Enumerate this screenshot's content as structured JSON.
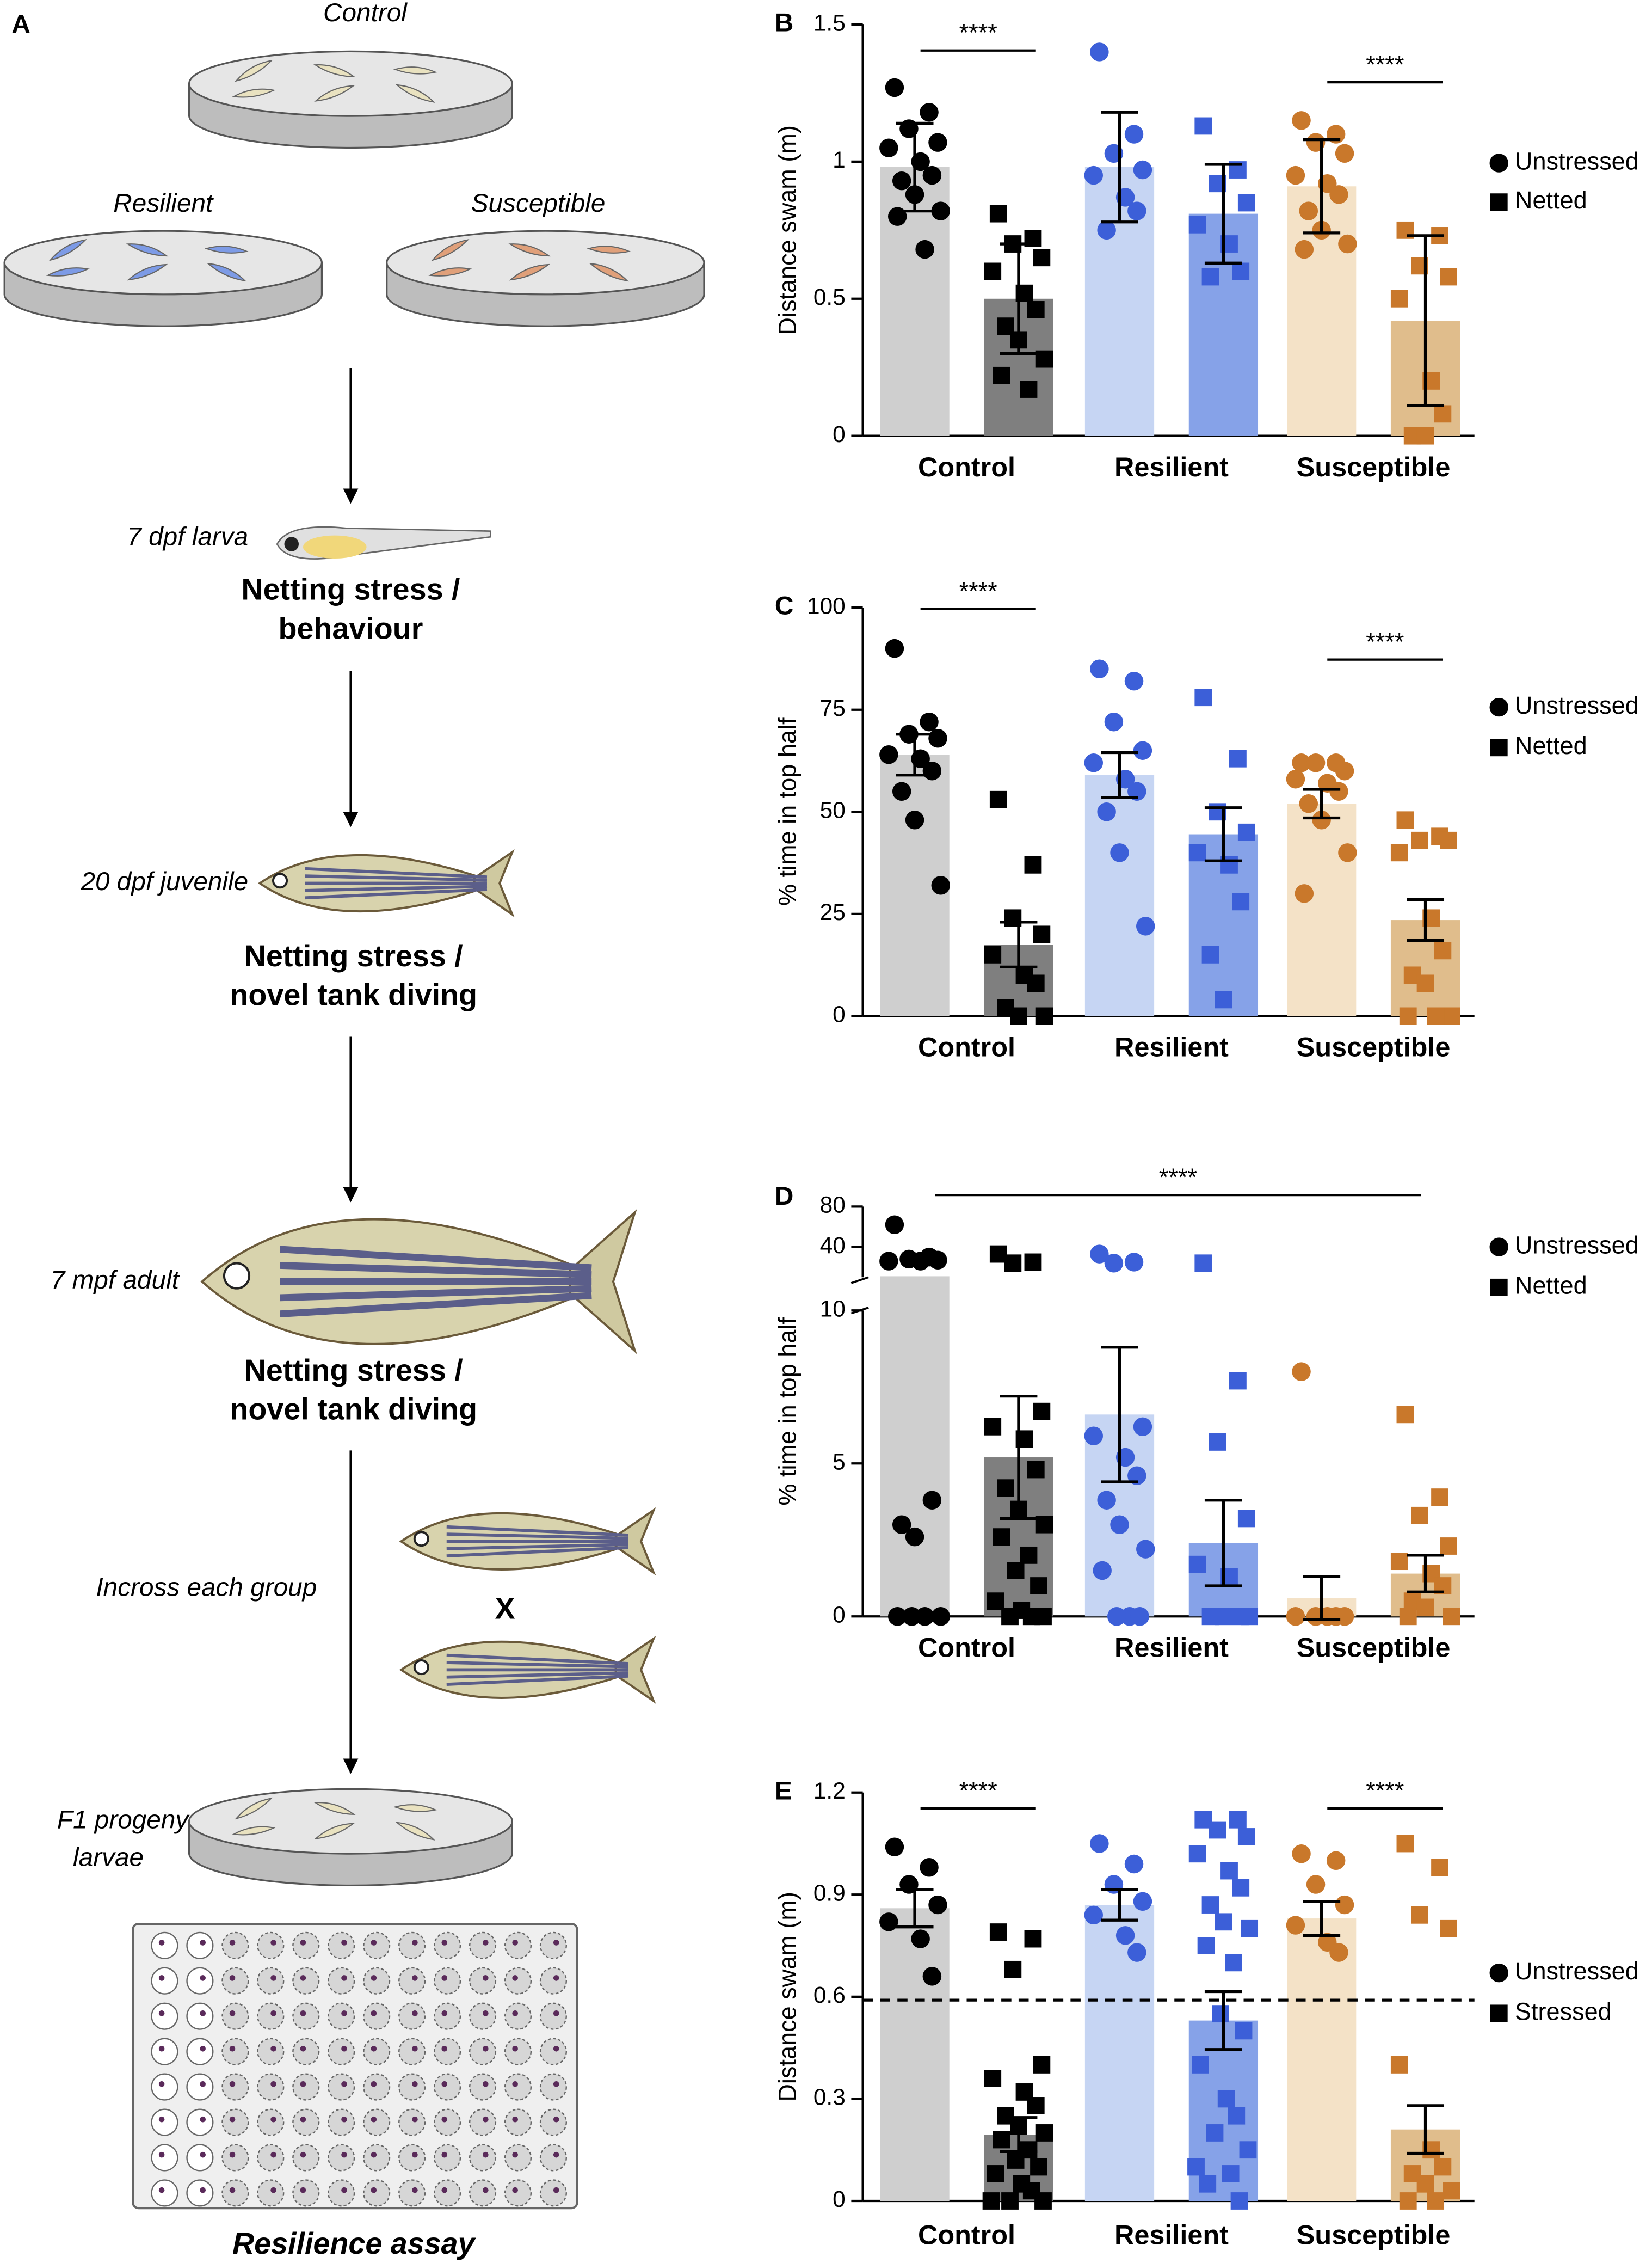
{
  "diagram": {
    "panel": "A",
    "dishes": [
      "Control",
      "Resilient",
      "Susceptible"
    ],
    "stages": [
      {
        "label": "7 dpf larva",
        "assay": [
          "Netting stress /",
          "behaviour"
        ]
      },
      {
        "label": "20 dpf juvenile",
        "assay": [
          "Netting stress /",
          "novel tank diving"
        ]
      },
      {
        "label": "7 mpf adult",
        "assay": [
          "Netting stress /",
          "novel tank diving"
        ]
      }
    ],
    "incross": "Incross each group",
    "cross": "X",
    "progeny": [
      "F1 progeny",
      "larvae"
    ],
    "assay": "Resilience assay"
  },
  "chart_data": [
    {
      "type": "bar",
      "panel": "B",
      "ylabel": "Distance swam (m)",
      "categories": [
        "Control",
        "Resilient",
        "Susceptible"
      ],
      "ylim": [
        0,
        1.5
      ],
      "yticks": [
        0,
        0.5,
        1,
        1.5
      ],
      "annotations": [
        "****",
        "****"
      ],
      "series": [
        {
          "name": "Unstressed",
          "marker": "circle",
          "colors": [
            "#cfcfcf",
            "#c6d5f3",
            "#f4e2c7"
          ],
          "point_colors": [
            "#000000",
            "#3c5fd8",
            "#c9782b"
          ],
          "values": [
            0.98,
            0.98,
            0.91
          ],
          "errors": [
            0.16,
            0.2,
            0.17
          ],
          "points": [
            [
              1.27,
              1.18,
              1.12,
              1.07,
              1.05,
              1.0,
              0.95,
              0.93,
              0.88,
              0.82,
              0.8,
              0.68
            ],
            [
              1.4,
              1.1,
              1.03,
              0.97,
              0.95,
              0.87,
              0.82,
              0.75
            ],
            [
              1.15,
              1.1,
              1.07,
              1.03,
              0.95,
              0.92,
              0.88,
              0.82,
              0.75,
              0.7,
              0.68
            ]
          ]
        },
        {
          "name": "Netted",
          "marker": "square",
          "colors": [
            "#7f7f7f",
            "#86a2e8",
            "#e0bd8c"
          ],
          "point_colors": [
            "#000000",
            "#3c5fd8",
            "#c9782b"
          ],
          "values": [
            0.5,
            0.81,
            0.42
          ],
          "errors": [
            0.2,
            0.18,
            0.31
          ],
          "points": [
            [
              0.81,
              0.72,
              0.7,
              0.65,
              0.6,
              0.52,
              0.46,
              0.4,
              0.35,
              0.28,
              0.22,
              0.17
            ],
            [
              1.13,
              0.97,
              0.92,
              0.85,
              0.77,
              0.7,
              0.6,
              0.58
            ],
            [
              0.75,
              0.73,
              0.62,
              0.58,
              0.5,
              0.2,
              0.08,
              0,
              0
            ]
          ]
        }
      ]
    },
    {
      "type": "bar",
      "panel": "C",
      "ylabel": "% time in top half",
      "categories": [
        "Control",
        "Resilient",
        "Susceptible"
      ],
      "ylim": [
        0,
        100
      ],
      "yticks": [
        0,
        25,
        50,
        75,
        100
      ],
      "annotations": [
        "****",
        "****"
      ],
      "series": [
        {
          "name": "Unstressed",
          "marker": "circle",
          "colors": [
            "#cfcfcf",
            "#c6d5f3",
            "#f4e2c7"
          ],
          "point_colors": [
            "#000000",
            "#3c5fd8",
            "#c9782b"
          ],
          "values": [
            64,
            59,
            52
          ],
          "errors": [
            5,
            5.5,
            3.5
          ],
          "points": [
            [
              90,
              72,
              69,
              68,
              64,
              63,
              60,
              55,
              48,
              32
            ],
            [
              85,
              82,
              72,
              65,
              62,
              58,
              55,
              50,
              40,
              22
            ],
            [
              62,
              62,
              62,
              60,
              58,
              57,
              55,
              52,
              48,
              40,
              30
            ]
          ]
        },
        {
          "name": "Netted",
          "marker": "square",
          "colors": [
            "#7f7f7f",
            "#86a2e8",
            "#e0bd8c"
          ],
          "point_colors": [
            "#000000",
            "#3c5fd8",
            "#c9782b"
          ],
          "values": [
            17.5,
            44.5,
            23.5
          ],
          "errors": [
            5.5,
            6.5,
            5
          ],
          "points": [
            [
              53,
              37,
              24,
              20,
              15,
              10,
              8,
              2,
              0,
              0
            ],
            [
              78,
              63,
              50,
              45,
              40,
              37,
              28,
              15,
              4
            ],
            [
              48,
              44,
              43,
              43,
              40,
              24,
              16,
              10,
              8,
              0,
              0,
              0
            ]
          ]
        }
      ]
    },
    {
      "type": "bar",
      "panel": "D",
      "ylabel": "% time in top half",
      "categories": [
        "Control",
        "Resilient",
        "Susceptible"
      ],
      "ylim": [
        0,
        10
      ],
      "yticks": [
        0,
        5,
        10
      ],
      "ylim_upper": [
        10,
        80
      ],
      "yticks_upper": [
        40,
        80
      ],
      "annotations": [
        "****"
      ],
      "series": [
        {
          "name": "Unstressed",
          "marker": "circle",
          "colors": [
            "#cfcfcf",
            "#c6d5f3",
            "#f4e2c7"
          ],
          "point_colors": [
            "#000000",
            "#3c5fd8",
            "#c9782b"
          ],
          "values": [
            11,
            6.6,
            0.6
          ],
          "errors": [
            null,
            2.2,
            0.7
          ],
          "points": [
            [
              62,
              30,
              28,
              27,
              26,
              26,
              3.8,
              3.0,
              2.6,
              0,
              0,
              0,
              0
            ],
            [
              33,
              25,
              24,
              6.2,
              5.9,
              5.2,
              4.6,
              3.8,
              3.0,
              2.2,
              1.5,
              0,
              0,
              0
            ],
            [
              8.0,
              0,
              0,
              0,
              0,
              0
            ]
          ]
        },
        {
          "name": "Netted",
          "marker": "square",
          "colors": [
            "#7f7f7f",
            "#86a2e8",
            "#e0bd8c"
          ],
          "point_colors": [
            "#000000",
            "#3c5fd8",
            "#c9782b"
          ],
          "values": [
            5.2,
            2.4,
            1.4
          ],
          "errors": [
            2,
            1.4,
            0.6
          ],
          "points": [
            [
              33,
              25,
              24,
              6.7,
              6.2,
              5.8,
              4.8,
              4.2,
              3.5,
              3.0,
              2.6,
              2.0,
              1.5,
              1.0,
              0.5,
              0.2,
              0,
              0,
              0
            ],
            [
              24,
              7.7,
              5.7,
              3.2,
              1.7,
              1.3,
              0,
              0,
              0,
              0
            ],
            [
              6.6,
              3.9,
              3.3,
              2.3,
              1.8,
              1.4,
              1.0,
              0.5,
              0.3,
              0,
              0
            ]
          ]
        }
      ]
    },
    {
      "type": "bar",
      "panel": "E",
      "ylabel": "Distance swam (m)",
      "categories": [
        "Control",
        "Resilient",
        "Susceptible"
      ],
      "ylim": [
        0,
        1.2
      ],
      "yticks": [
        0,
        0.3,
        0.6,
        0.9,
        1.2
      ],
      "threshold": 0.59,
      "annotations": [
        "****",
        "****"
      ],
      "series": [
        {
          "name": "Unstressed",
          "marker": "circle",
          "colors": [
            "#cfcfcf",
            "#c6d5f3",
            "#f4e2c7"
          ],
          "point_colors": [
            "#000000",
            "#3c5fd8",
            "#c9782b"
          ],
          "values": [
            0.86,
            0.87,
            0.83
          ],
          "errors": [
            0.055,
            0.045,
            0.05
          ],
          "points": [
            [
              1.04,
              0.98,
              0.93,
              0.87,
              0.82,
              0.77,
              0.66
            ],
            [
              1.05,
              0.99,
              0.93,
              0.88,
              0.84,
              0.78,
              0.73
            ],
            [
              1.02,
              1.0,
              0.93,
              0.87,
              0.81,
              0.76,
              0.73
            ]
          ]
        },
        {
          "name": "Stressed",
          "marker": "square",
          "colors": [
            "#7f7f7f",
            "#86a2e8",
            "#e0bd8c"
          ],
          "point_colors": [
            "#000000",
            "#3c5fd8",
            "#c9782b"
          ],
          "values": [
            0.195,
            0.53,
            0.21
          ],
          "errors": [
            0.05,
            0.085,
            0.07
          ],
          "points": [
            [
              0.79,
              0.77,
              0.68,
              0.4,
              0.36,
              0.32,
              0.28,
              0.25,
              0.22,
              0.2,
              0.18,
              0.15,
              0.12,
              0.1,
              0.08,
              0.05,
              0.03,
              0,
              0,
              0
            ],
            [
              1.12,
              1.12,
              1.09,
              1.07,
              1.02,
              0.97,
              0.92,
              0.87,
              0.82,
              0.8,
              0.75,
              0.7,
              0.55,
              0.5,
              0.4,
              0.3,
              0.25,
              0.2,
              0.15,
              0.1,
              0.08,
              0.05,
              0
            ],
            [
              1.05,
              0.98,
              0.84,
              0.8,
              0.4,
              0.15,
              0.1,
              0.08,
              0.05,
              0.03,
              0,
              0
            ]
          ]
        }
      ]
    }
  ]
}
